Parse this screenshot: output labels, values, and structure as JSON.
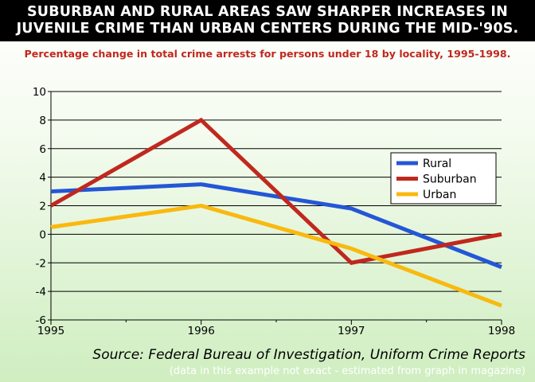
{
  "title_lines": [
    "SUBURBAN AND RURAL AREAS SAW SHARPER INCREASES IN",
    "JUVENILE CRIME THAN URBAN CENTERS DURING THE MID-'90S."
  ],
  "subtitle": "Percentage change in total crime arrests for persons under 18 by locality, 1995-1998.",
  "source": "Source: Federal Bureau of Investigation, Uniform Crime Reports",
  "note": "(data in this example not exact - estimated from graph in magazine)",
  "chart_data": {
    "type": "line",
    "title": "SUBURBAN AND RURAL AREAS SAW SHARPER INCREASES IN JUVENILE CRIME THAN URBAN CENTERS DURING THE MID-'90S.",
    "subtitle": "Percentage change in total crime arrests for persons under 18 by locality, 1995-1998.",
    "xlabel": "",
    "ylabel": "",
    "x": [
      "1995",
      "1996",
      "1997",
      "1998"
    ],
    "ylim": [
      -6,
      10
    ],
    "yticks": [
      -6,
      -4,
      -2,
      0,
      2,
      4,
      6,
      8,
      10
    ],
    "grid": "horizontal",
    "legend": "right",
    "series": [
      {
        "name": "Rural",
        "color": "#2457d6",
        "values": [
          3,
          3.5,
          1.8,
          -2.3
        ]
      },
      {
        "name": "Suburban",
        "color": "#c0281e",
        "values": [
          2,
          8,
          -2,
          0
        ]
      },
      {
        "name": "Urban",
        "color": "#f9b90f",
        "values": [
          0.5,
          2,
          -1,
          -5
        ]
      }
    ]
  }
}
